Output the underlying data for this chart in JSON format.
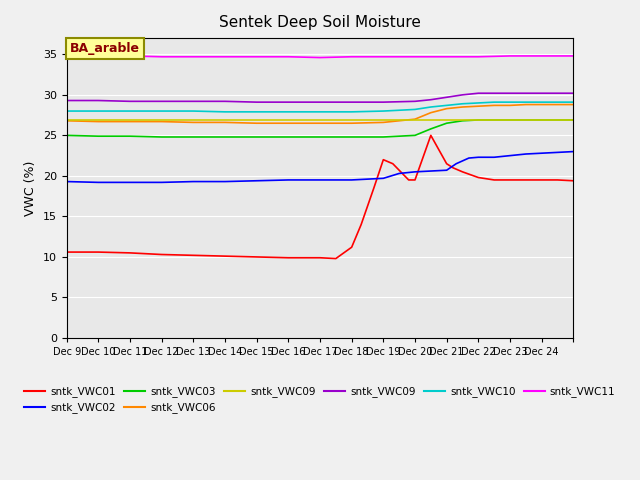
{
  "title": "Sentek Deep Soil Moisture",
  "ylabel": "VWC (%)",
  "annotation": "BA_arable",
  "ylim": [
    0,
    37
  ],
  "yticks": [
    0,
    5,
    10,
    15,
    20,
    25,
    30,
    35
  ],
  "xtick_positions": [
    8,
    9,
    10,
    11,
    12,
    13,
    14,
    15,
    16,
    17,
    18,
    19,
    20,
    21,
    22,
    23,
    24
  ],
  "xtick_labels": [
    "Dec 9",
    "Dec 10",
    "Dec 11",
    "Dec 12",
    "Dec 13",
    "Dec 14",
    "Dec 15",
    "Dec 16",
    "Dec 17",
    "Dec 18",
    "Dec 19",
    "Dec 20",
    "Dec 21",
    "Dec 22",
    "Dec 23",
    "Dec 24",
    ""
  ],
  "background_color": "#f0f0f0",
  "plot_bg": "#e8e8e8",
  "series": {
    "sntk_VWC01": {
      "color": "#ff0000",
      "data_x": [
        8,
        9,
        10,
        11,
        12,
        13,
        14,
        15,
        16,
        16.5,
        17,
        17.3,
        17.7,
        18,
        18.3,
        18.8,
        19,
        19.5,
        20,
        20.2,
        20.5,
        21,
        21.5,
        22,
        22.5,
        23,
        23.5,
        24
      ],
      "data_y": [
        10.6,
        10.6,
        10.5,
        10.3,
        10.2,
        10.1,
        10.0,
        9.9,
        9.9,
        9.8,
        11.2,
        14.0,
        18.5,
        22.0,
        21.5,
        19.5,
        19.5,
        25.0,
        21.5,
        21.0,
        20.5,
        19.8,
        19.5,
        19.5,
        19.5,
        19.5,
        19.5,
        19.4
      ]
    },
    "sntk_VWC02": {
      "color": "#0000ff",
      "data_x": [
        8,
        9,
        10,
        11,
        12,
        13,
        14,
        15,
        16,
        17,
        18,
        18.5,
        19,
        19.5,
        20,
        20.3,
        20.7,
        21,
        21.5,
        22,
        22.5,
        23,
        23.5,
        24
      ],
      "data_y": [
        19.3,
        19.2,
        19.2,
        19.2,
        19.3,
        19.3,
        19.4,
        19.5,
        19.5,
        19.5,
        19.7,
        20.3,
        20.5,
        20.6,
        20.7,
        21.5,
        22.2,
        22.3,
        22.3,
        22.5,
        22.7,
        22.8,
        22.9,
        23.0
      ]
    },
    "sntk_VWC03": {
      "color": "#00cc00",
      "data_x": [
        8,
        9,
        10,
        11,
        12,
        13,
        14,
        15,
        16,
        17,
        18,
        19,
        19.5,
        20,
        20.5,
        21,
        21.5,
        22,
        22.5,
        23,
        23.5,
        24
      ],
      "data_y": [
        25.0,
        24.9,
        24.9,
        24.8,
        24.8,
        24.8,
        24.8,
        24.8,
        24.8,
        24.8,
        24.8,
        25.0,
        25.8,
        26.5,
        26.8,
        26.9,
        26.9,
        26.9,
        26.9,
        26.9,
        26.9,
        26.9
      ]
    },
    "sntk_VWC06": {
      "color": "#ff8800",
      "data_x": [
        8,
        9,
        10,
        11,
        12,
        13,
        14,
        15,
        16,
        17,
        18,
        19,
        19.5,
        20,
        20.5,
        21,
        21.5,
        22,
        22.5,
        23,
        23.5,
        24
      ],
      "data_y": [
        26.8,
        26.7,
        26.7,
        26.7,
        26.6,
        26.6,
        26.5,
        26.5,
        26.5,
        26.5,
        26.6,
        27.0,
        27.8,
        28.3,
        28.5,
        28.6,
        28.7,
        28.7,
        28.8,
        28.8,
        28.8,
        28.8
      ]
    },
    "sntk_VWC09_yellow": {
      "color": "#cccc00",
      "data_x": [
        8,
        9,
        10,
        11,
        12,
        13,
        14,
        15,
        16,
        17,
        18,
        19,
        20,
        21,
        22,
        23,
        24
      ],
      "data_y": [
        26.9,
        26.9,
        26.9,
        26.9,
        26.9,
        26.9,
        26.9,
        26.9,
        26.9,
        26.9,
        26.9,
        26.9,
        26.9,
        26.9,
        26.9,
        26.9,
        26.9
      ]
    },
    "sntk_VWC09_purple": {
      "color": "#9900cc",
      "data_x": [
        8,
        9,
        10,
        11,
        12,
        13,
        14,
        15,
        16,
        17,
        18,
        19,
        19.5,
        20,
        20.5,
        21,
        21.5,
        22,
        22.5,
        23,
        23.5,
        24
      ],
      "data_y": [
        29.3,
        29.3,
        29.2,
        29.2,
        29.2,
        29.2,
        29.1,
        29.1,
        29.1,
        29.1,
        29.1,
        29.2,
        29.4,
        29.7,
        30.0,
        30.2,
        30.2,
        30.2,
        30.2,
        30.2,
        30.2,
        30.2
      ]
    },
    "sntk_VWC10": {
      "color": "#00cccc",
      "data_x": [
        8,
        9,
        10,
        11,
        12,
        13,
        14,
        15,
        16,
        17,
        18,
        19,
        19.5,
        20,
        20.5,
        21,
        21.5,
        22,
        22.5,
        23,
        23.5,
        24
      ],
      "data_y": [
        28.0,
        28.0,
        28.0,
        28.0,
        28.0,
        27.9,
        27.9,
        27.9,
        27.9,
        27.9,
        28.0,
        28.2,
        28.5,
        28.7,
        28.9,
        29.0,
        29.1,
        29.1,
        29.1,
        29.1,
        29.1,
        29.1
      ]
    },
    "sntk_VWC11": {
      "color": "#ff00ff",
      "data_x": [
        8,
        9,
        10,
        11,
        12,
        13,
        14,
        15,
        16,
        17,
        18,
        19,
        20,
        21,
        22,
        23,
        24
      ],
      "data_y": [
        34.8,
        34.8,
        34.8,
        34.7,
        34.7,
        34.7,
        34.7,
        34.7,
        34.6,
        34.7,
        34.7,
        34.7,
        34.7,
        34.7,
        34.8,
        34.8,
        34.8
      ]
    }
  },
  "legend_entries": [
    {
      "label": "sntk_VWC01",
      "color": "#ff0000"
    },
    {
      "label": "sntk_VWC02",
      "color": "#0000ff"
    },
    {
      "label": "sntk_VWC03",
      "color": "#00cc00"
    },
    {
      "label": "sntk_VWC06",
      "color": "#ff8800"
    },
    {
      "label": "sntk_VWC09",
      "color": "#cccc00"
    },
    {
      "label": "sntk_VWC09",
      "color": "#9900cc"
    },
    {
      "label": "sntk_VWC10",
      "color": "#00cccc"
    },
    {
      "label": "sntk_VWC11",
      "color": "#ff00ff"
    }
  ]
}
